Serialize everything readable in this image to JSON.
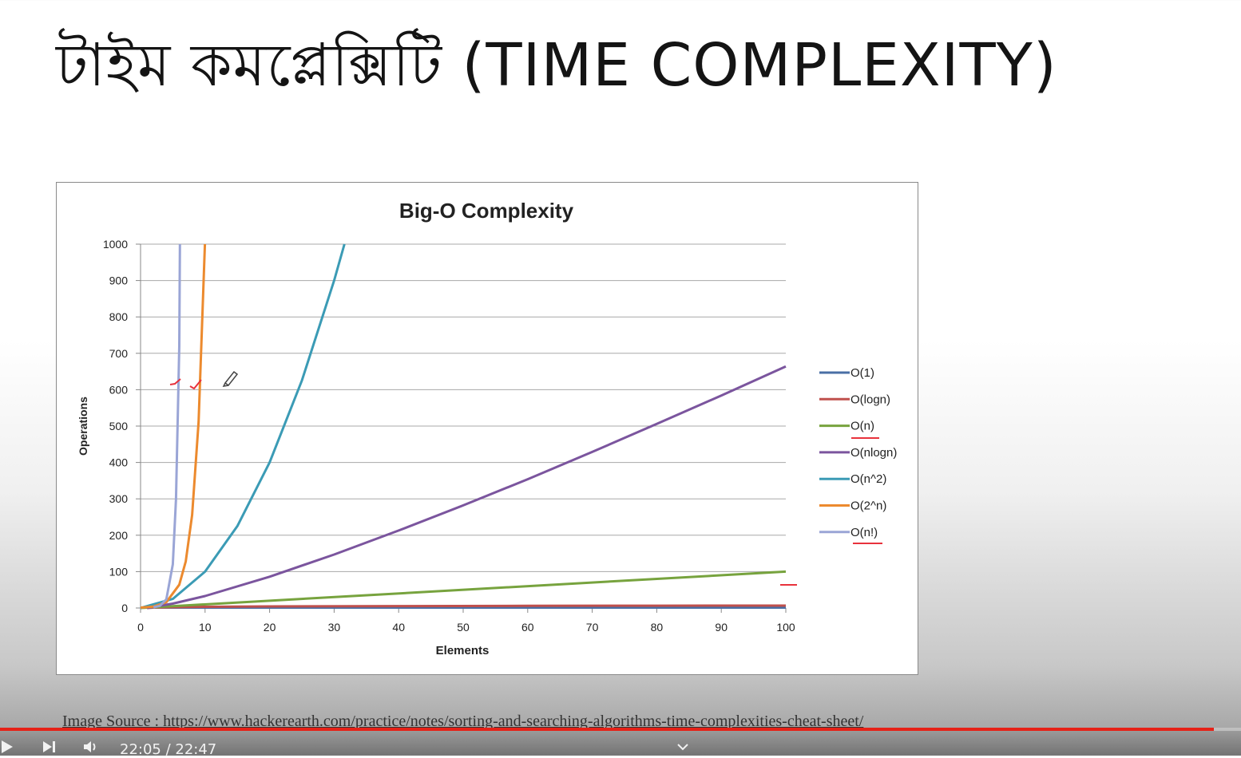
{
  "slide": {
    "title": "টাইম কমপ্লেক্সিটি (TIME COMPLEXITY)",
    "source": "Image Source : https://www.hackerearth.com/practice/notes/sorting-and-searching-algorithms-time-complexities-cheat-sheet/"
  },
  "chart_data": {
    "type": "line",
    "title": "Big-O Complexity",
    "xlabel": "Elements",
    "ylabel": "Operations",
    "xlim": [
      0,
      100
    ],
    "ylim": [
      0,
      1000
    ],
    "xticks": [
      0,
      10,
      20,
      30,
      40,
      50,
      60,
      70,
      80,
      90,
      100
    ],
    "yticks": [
      0,
      100,
      200,
      300,
      400,
      500,
      600,
      700,
      800,
      900,
      1000
    ],
    "grid": "horizontal",
    "legend_position": "right",
    "series": [
      {
        "name": "O(1)",
        "color": "#4a6fa5",
        "x": [
          0,
          100
        ],
        "y": [
          1,
          1
        ]
      },
      {
        "name": "O(logn)",
        "color": "#c0504d",
        "x": [
          1,
          2,
          5,
          10,
          20,
          40,
          60,
          80,
          100
        ],
        "y": [
          0,
          1,
          2.3,
          3.3,
          4.3,
          5.3,
          5.9,
          6.3,
          6.6
        ]
      },
      {
        "name": "O(n)",
        "color": "#77a33e",
        "x": [
          0,
          100
        ],
        "y": [
          0,
          100
        ]
      },
      {
        "name": "O(nlogn)",
        "color": "#7b559e",
        "x": [
          1,
          5,
          10,
          20,
          30,
          40,
          50,
          60,
          70,
          80,
          90,
          100
        ],
        "y": [
          0,
          12,
          33,
          86,
          147,
          213,
          282,
          354,
          429,
          506,
          584,
          664
        ]
      },
      {
        "name": "O(n^2)",
        "color": "#3b9bb5",
        "x": [
          0,
          5,
          10,
          15,
          20,
          25,
          30,
          31.6
        ],
        "y": [
          0,
          25,
          100,
          225,
          400,
          625,
          900,
          1000
        ]
      },
      {
        "name": "O(2^n)",
        "color": "#ec8a2e",
        "x": [
          0,
          2,
          4,
          6,
          7,
          8,
          9,
          9.97
        ],
        "y": [
          1,
          4,
          16,
          64,
          128,
          256,
          512,
          1000
        ]
      },
      {
        "name": "O(n!)",
        "color": "#9aa5d6",
        "x": [
          2,
          3,
          4,
          5,
          5.5,
          6,
          6.1
        ],
        "y": [
          2,
          6,
          24,
          120,
          300,
          720,
          1000
        ]
      }
    ],
    "annotations": {
      "pen_color": "#e8323c"
    }
  },
  "player": {
    "progress": 0.978,
    "time": "22:05 / 22:47",
    "colors": {
      "progress": "#e62117",
      "controls": "#f2f2f2"
    },
    "icons": [
      "play-icon",
      "next-icon",
      "volume-icon",
      "chevron-down-icon"
    ]
  }
}
